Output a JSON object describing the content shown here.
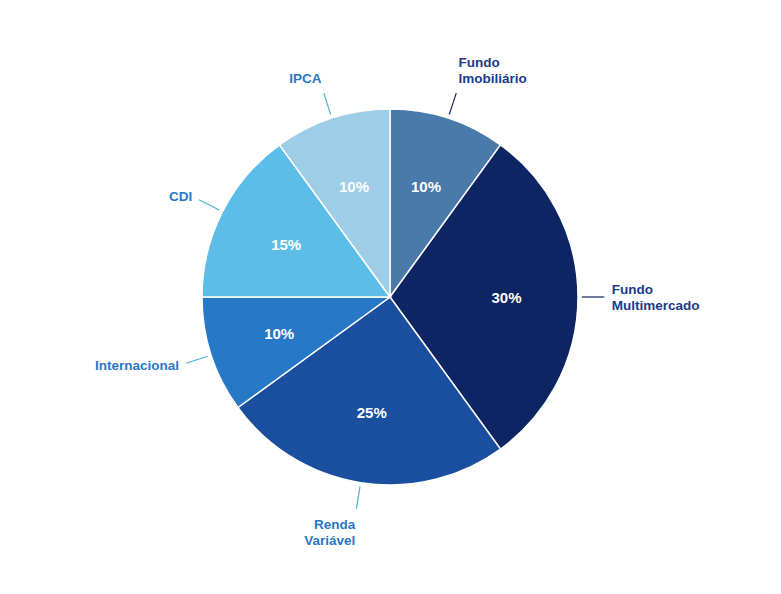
{
  "chart_data": {
    "type": "pie",
    "categories": [
      "Fundo\nImobiliário",
      "Fundo\nMultimercado",
      "Renda\nVariável",
      "Internacional",
      "CDI",
      "IPCA"
    ],
    "values": [
      10,
      30,
      25,
      10,
      15,
      10
    ],
    "value_labels": [
      "10%",
      "30%",
      "25%",
      "10%",
      "15%",
      "10%"
    ],
    "colors": [
      "#4a7aaa",
      "#0d2563",
      "#1a4fa0",
      "#2878c8",
      "#5bbde8",
      "#9ecde8"
    ],
    "data_labels": true
  }
}
